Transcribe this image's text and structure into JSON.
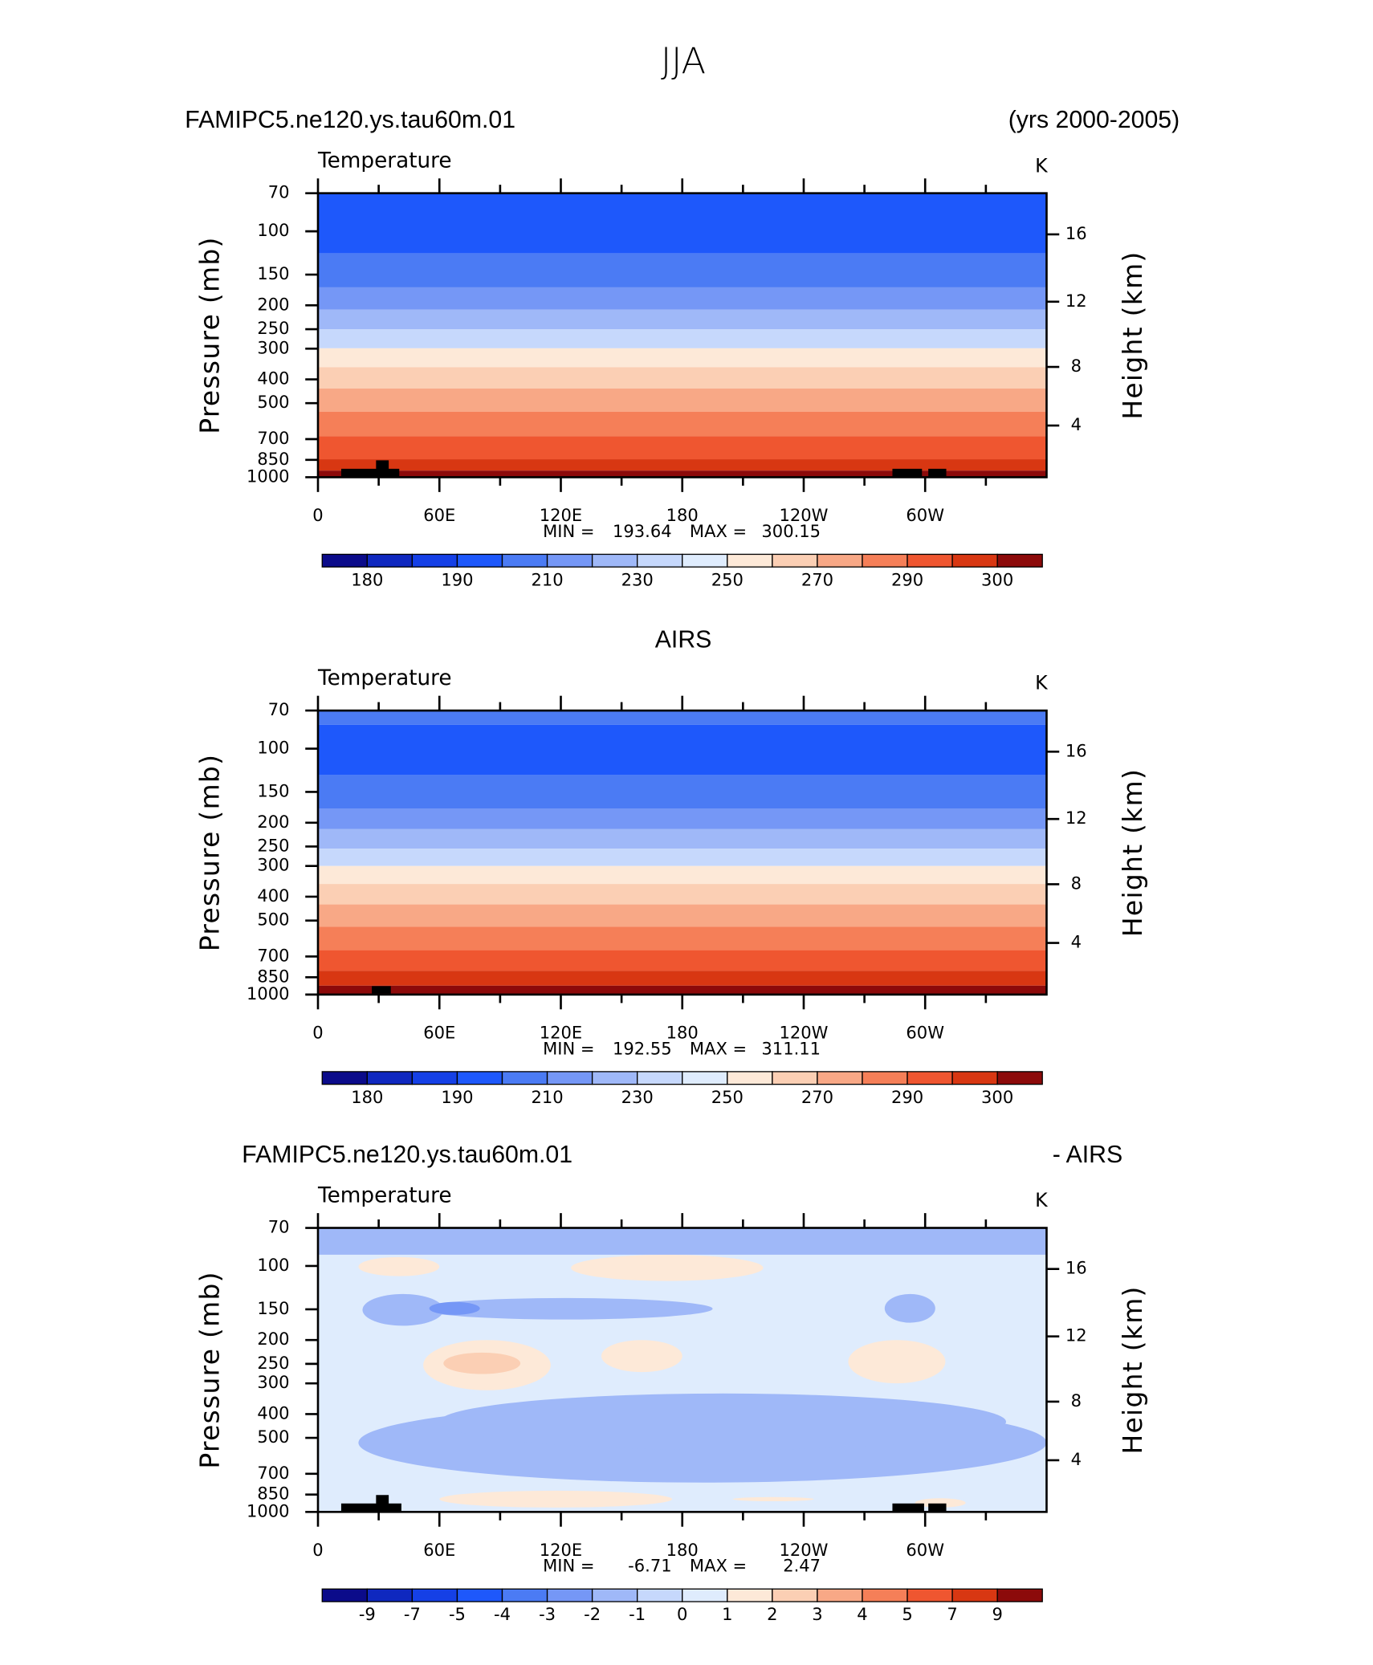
{
  "chart_data": [
    {
      "type": "contour",
      "figure_title": "JJA",
      "left_title": "FAMIPC5.ne120.ys.tau60m.01",
      "right_title": "(yrs 2000-2005)",
      "subtitle": "Temperature",
      "units": "K",
      "ylabel": "Pressure (mb)",
      "y2label": "Height (km)",
      "xlim": [
        0,
        360
      ],
      "xticks": [
        0,
        {
          "value": 60,
          "label": "60E"
        },
        {
          "value": 120,
          "label": "120E"
        },
        180,
        {
          "value": 240,
          "label": "120W"
        },
        {
          "value": 300,
          "label": "60W"
        }
      ],
      "ylim": [
        1000,
        70
      ],
      "log_y": true,
      "yticks": [
        70,
        100,
        150,
        200,
        250,
        300,
        400,
        500,
        700,
        850,
        1000
      ],
      "y2ticks": [
        4,
        8,
        12,
        16
      ],
      "min_label": "MIN =",
      "min": 193.64,
      "max_label": "MAX =",
      "max": 300.15,
      "colors": [
        "#0b0b8a",
        "#0f28bf",
        "#1540e6",
        "#1e58fb",
        "#4b7bf4",
        "#7597f6",
        "#9fb8f8",
        "#c6d8fc",
        "#dfecfd",
        "#fde9d8",
        "#fbcfb4",
        "#f8a886",
        "#f57f58",
        "#ef5630",
        "#d83712",
        "#8c0a0a"
      ],
      "colorbar_labels": [
        180,
        190,
        210,
        230,
        250,
        270,
        290,
        300
      ],
      "bands": [
        {
          "p": [
            70,
            123
          ],
          "level": 3
        },
        {
          "p": [
            123,
            169
          ],
          "level": 4
        },
        {
          "p": [
            169,
            208
          ],
          "level": 5
        },
        {
          "p": [
            208,
            250
          ],
          "level": 6
        },
        {
          "p": [
            250,
            299
          ],
          "level": 7
        },
        {
          "p": [
            299,
            357
          ],
          "level": 9
        },
        {
          "p": [
            357,
            436
          ],
          "level": 10
        },
        {
          "p": [
            436,
            542
          ],
          "level": 11
        },
        {
          "p": [
            542,
            681
          ],
          "level": 12
        },
        {
          "p": [
            681,
            845
          ],
          "level": 13
        },
        {
          "p": [
            845,
            940
          ],
          "level": 14
        },
        {
          "p": [
            940,
            1000
          ],
          "level": 15
        }
      ],
      "blobs": []
    },
    {
      "type": "contour",
      "center_title": "AIRS",
      "subtitle": "Temperature",
      "units": "K",
      "ylabel": "Pressure (mb)",
      "y2label": "Height (km)",
      "xlim": [
        0,
        360
      ],
      "xticks": [
        0,
        {
          "value": 60,
          "label": "60E"
        },
        {
          "value": 120,
          "label": "120E"
        },
        180,
        {
          "value": 240,
          "label": "120W"
        },
        {
          "value": 300,
          "label": "60W"
        }
      ],
      "ylim": [
        1000,
        70
      ],
      "log_y": true,
      "yticks": [
        70,
        100,
        150,
        200,
        250,
        300,
        400,
        500,
        700,
        850,
        1000
      ],
      "y2ticks": [
        4,
        8,
        12,
        16
      ],
      "min_label": "MIN =",
      "min": 192.55,
      "max_label": "MAX =",
      "max": 311.11,
      "colors": [
        "#0b0b8a",
        "#0f28bf",
        "#1540e6",
        "#1e58fb",
        "#4b7bf4",
        "#7597f6",
        "#9fb8f8",
        "#c6d8fc",
        "#dfecfd",
        "#fde9d8",
        "#fbcfb4",
        "#f8a886",
        "#f57f58",
        "#ef5630",
        "#d83712",
        "#8c0a0a"
      ],
      "colorbar_labels": [
        180,
        190,
        210,
        230,
        250,
        270,
        290,
        300
      ],
      "bands": [
        {
          "p": [
            70,
            80
          ],
          "level": 4
        },
        {
          "p": [
            80,
            128
          ],
          "level": 3
        },
        {
          "p": [
            128,
            175
          ],
          "level": 4
        },
        {
          "p": [
            175,
            212
          ],
          "level": 5
        },
        {
          "p": [
            212,
            255
          ],
          "level": 6
        },
        {
          "p": [
            255,
            300
          ],
          "level": 7
        },
        {
          "p": [
            300,
            355
          ],
          "level": 9
        },
        {
          "p": [
            355,
            430
          ],
          "level": 10
        },
        {
          "p": [
            430,
            530
          ],
          "level": 11
        },
        {
          "p": [
            530,
            660
          ],
          "level": 12
        },
        {
          "p": [
            660,
            800
          ],
          "level": 13
        },
        {
          "p": [
            800,
            920
          ],
          "level": 14
        },
        {
          "p": [
            920,
            1000
          ],
          "level": 15
        }
      ],
      "blobs": []
    },
    {
      "type": "contour",
      "left_title": "FAMIPC5.ne120.ys.tau60m.01",
      "right_title": "- AIRS",
      "subtitle": "Temperature",
      "units": "K",
      "ylabel": "Pressure (mb)",
      "y2label": "Height (km)",
      "xlim": [
        0,
        360
      ],
      "xticks": [
        0,
        {
          "value": 60,
          "label": "60E"
        },
        {
          "value": 120,
          "label": "120E"
        },
        180,
        {
          "value": 240,
          "label": "120W"
        },
        {
          "value": 300,
          "label": "60W"
        }
      ],
      "ylim": [
        1000,
        70
      ],
      "log_y": true,
      "yticks": [
        70,
        100,
        150,
        200,
        250,
        300,
        400,
        500,
        700,
        850,
        1000
      ],
      "y2ticks": [
        4,
        8,
        12,
        16
      ],
      "min_label": "MIN =",
      "min": -6.71,
      "max_label": "MAX =",
      "max": 2.47,
      "colors": [
        "#0b0b8a",
        "#0f28bf",
        "#1540e6",
        "#1e58fb",
        "#4b7bf4",
        "#7597f6",
        "#9fb8f8",
        "#c6d8fc",
        "#dfecfd",
        "#fde9d8",
        "#fbcfb4",
        "#f8a886",
        "#f57f58",
        "#ef5630",
        "#d83712",
        "#8c0a0a"
      ],
      "colorbar_labels": [
        -9,
        -7,
        -5,
        -4,
        -3,
        -2,
        -1,
        0,
        1,
        2,
        3,
        4,
        5,
        7,
        9
      ],
      "bands": [
        {
          "p": [
            70,
            90
          ],
          "level": 6
        },
        {
          "p": [
            90,
            1000
          ],
          "level": 8
        }
      ],
      "blobs": [
        {
          "lon": [
            20,
            360
          ],
          "p": [
            360,
            760
          ],
          "level": 6
        },
        {
          "lon": [
            60,
            340
          ],
          "p": [
            330,
            560
          ],
          "level": 6
        },
        {
          "lon": [
            22,
            62
          ],
          "p": [
            130,
            175
          ],
          "level": 6
        },
        {
          "lon": [
            50,
            195
          ],
          "p": [
            135,
            165
          ],
          "level": 6
        },
        {
          "lon": [
            280,
            305
          ],
          "p": [
            130,
            170
          ],
          "level": 6
        },
        {
          "lon": [
            55,
            80
          ],
          "p": [
            140,
            158
          ],
          "level": 5
        },
        {
          "lon": [
            20,
            60
          ],
          "p": [
            92,
            110
          ],
          "level": 9
        },
        {
          "lon": [
            125,
            220
          ],
          "p": [
            90,
            115
          ],
          "level": 9
        },
        {
          "lon": [
            52,
            115
          ],
          "p": [
            200,
            320
          ],
          "level": 9
        },
        {
          "lon": [
            62,
            100
          ],
          "p": [
            225,
            275
          ],
          "level": 10
        },
        {
          "lon": [
            140,
            180
          ],
          "p": [
            200,
            270
          ],
          "level": 9
        },
        {
          "lon": [
            262,
            310
          ],
          "p": [
            200,
            300
          ],
          "level": 9
        },
        {
          "lon": [
            60,
            175
          ],
          "p": [
            820,
            960
          ],
          "level": 9
        },
        {
          "lon": [
            205,
            245
          ],
          "p": [
            870,
            905
          ],
          "level": 9
        },
        {
          "lon": [
            295,
            320
          ],
          "p": [
            880,
            960
          ],
          "level": 9
        }
      ]
    }
  ]
}
